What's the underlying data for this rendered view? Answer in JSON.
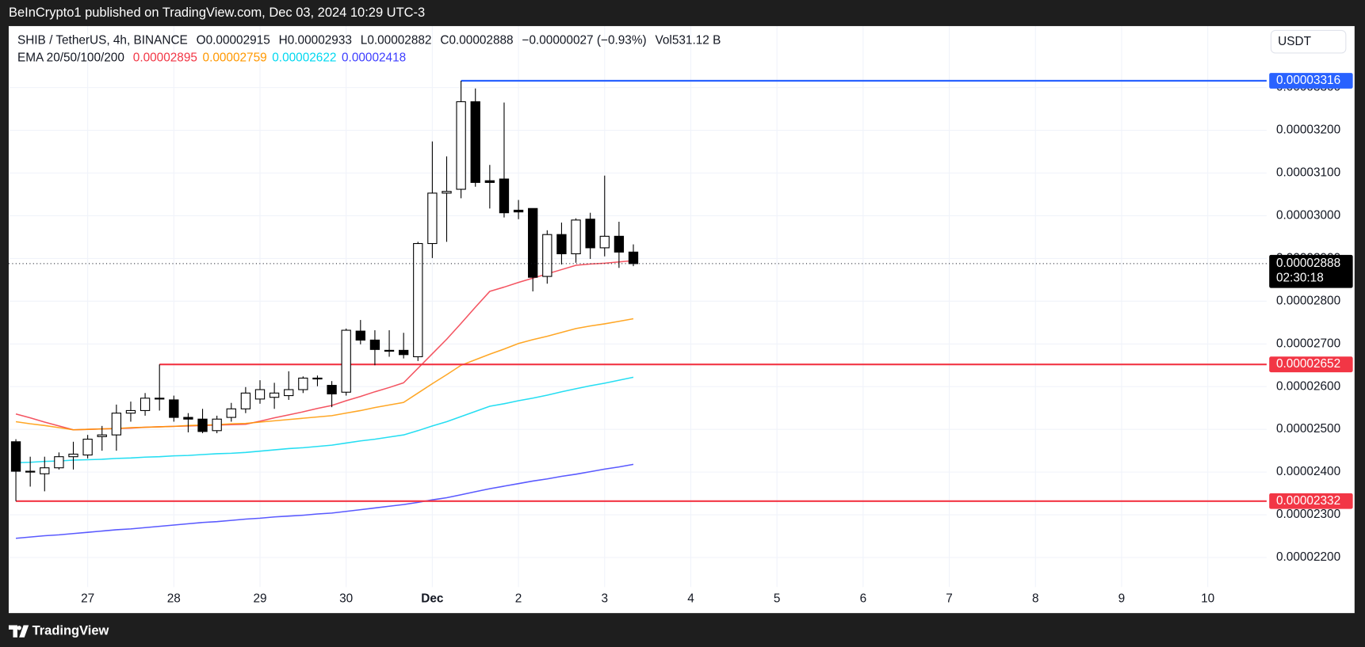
{
  "header": {
    "credit": "BeInCrypto1 published on TradingView.com, Dec 03, 2024 10:29 UTC-3"
  },
  "footer": {
    "brand": "TradingView"
  },
  "chart_data": {
    "type": "candlestick",
    "symbol": "SHIB / TetherUS, 4h, BINANCE",
    "ohlc_labels": [
      "O",
      "H",
      "L",
      "C"
    ],
    "change": "−0.00000027 (−0.93%)",
    "volume": {
      "label": "Vol",
      "value": "531.12 B"
    },
    "indicator": "EMA 20/50/100/200",
    "currency": "USDT",
    "countdown": "02:30:18",
    "up_color": "#ffffff",
    "down_color": "#000000",
    "open": [
      2.471e-05,
      2.402e-05,
      2.396e-05,
      2.41e-05,
      2.436e-05,
      2.44e-05,
      2.483e-05,
      2.487e-05,
      2.538e-05,
      2.544e-05,
      2.573e-05,
      2.569e-05,
      2.528e-05,
      2.524e-05,
      2.497e-05,
      2.528e-05,
      2.548e-05,
      2.571e-05,
      2.575e-05,
      2.579e-05,
      2.593e-05,
      2.618e-05,
      2.603e-05,
      2.587e-05,
      2.73e-05,
      2.709e-05,
      2.685e-05,
      2.685e-05,
      2.67e-05,
      2.935e-05,
      3.053e-05,
      3.062e-05,
      3.267e-05,
      3.082e-05,
      3.086e-05,
      3.013e-05,
      3.017e-05,
      2.858e-05,
      2.956e-05,
      2.911e-05,
      2.992e-05,
      2.925e-05,
      2.952e-05,
      2.915e-05
    ],
    "high": [
      2.477e-05,
      2.436e-05,
      2.436e-05,
      2.446e-05,
      2.471e-05,
      2.487e-05,
      2.508e-05,
      2.558e-05,
      2.565e-05,
      2.585e-05,
      2.652e-05,
      2.579e-05,
      2.538e-05,
      2.548e-05,
      2.532e-05,
      2.562e-05,
      2.599e-05,
      2.615e-05,
      2.609e-05,
      2.636e-05,
      2.624e-05,
      2.626e-05,
      2.613e-05,
      2.736e-05,
      2.756e-05,
      2.732e-05,
      2.732e-05,
      2.726e-05,
      2.939e-05,
      3.174e-05,
      3.139e-05,
      3.316e-05,
      3.298e-05,
      3.119e-05,
      3.265e-05,
      3.037e-05,
      3.017e-05,
      2.966e-05,
      2.984e-05,
      2.994e-05,
      3.007e-05,
      3.094e-05,
      2.986e-05,
      2.933e-05
    ],
    "low": [
      2.332e-05,
      2.366e-05,
      2.355e-05,
      2.406e-05,
      2.406e-05,
      2.432e-05,
      2.45e-05,
      2.45e-05,
      2.518e-05,
      2.532e-05,
      2.544e-05,
      2.518e-05,
      2.493e-05,
      2.491e-05,
      2.491e-05,
      2.518e-05,
      2.538e-05,
      2.56e-05,
      2.548e-05,
      2.569e-05,
      2.585e-05,
      2.601e-05,
      2.552e-05,
      2.579e-05,
      2.699e-05,
      2.65e-05,
      2.67e-05,
      2.666e-05,
      2.66e-05,
      2.901e-05,
      2.939e-05,
      3.041e-05,
      3.068e-05,
      3.017e-05,
      2.996e-05,
      2.992e-05,
      2.823e-05,
      2.841e-05,
      2.886e-05,
      2.89e-05,
      2.899e-05,
      2.905e-05,
      2.878e-05,
      2.882e-05
    ],
    "close": [
      2.402e-05,
      2.4e-05,
      2.41e-05,
      2.436e-05,
      2.442e-05,
      2.477e-05,
      2.487e-05,
      2.538e-05,
      2.544e-05,
      2.573e-05,
      2.571e-05,
      2.528e-05,
      2.524e-05,
      2.495e-05,
      2.524e-05,
      2.548e-05,
      2.585e-05,
      2.593e-05,
      2.585e-05,
      2.593e-05,
      2.62e-05,
      2.62e-05,
      2.583e-05,
      2.732e-05,
      2.709e-05,
      2.687e-05,
      2.683e-05,
      2.675e-05,
      2.935e-05,
      3.053e-05,
      3.057e-05,
      3.267e-05,
      3.078e-05,
      3.078e-05,
      3.007e-05,
      3.009e-05,
      2.856e-05,
      2.956e-05,
      2.911e-05,
      2.99e-05,
      2.925e-05,
      2.952e-05,
      2.915e-05,
      2.888e-05
    ],
    "series": [
      {
        "color": "#f23645",
        "values": [
          2.536e-05,
          2.527e-05,
          2.517e-05,
          2.508e-05,
          2.499e-05,
          2.5e-05,
          2.501e-05,
          2.502e-05,
          2.503e-05,
          2.505e-05,
          2.506e-05,
          2.507e-05,
          2.508e-05,
          2.509e-05,
          2.51e-05,
          2.511e-05,
          2.512e-05,
          2.519e-05,
          2.527e-05,
          2.534e-05,
          2.541e-05,
          2.549e-05,
          2.556e-05,
          2.567e-05,
          2.577e-05,
          2.588e-05,
          2.598e-05,
          2.609e-05,
          2.643e-05,
          2.677e-05,
          2.711e-05,
          2.748e-05,
          2.786e-05,
          2.823e-05,
          2.833e-05,
          2.844e-05,
          2.854e-05,
          2.864e-05,
          2.874e-05,
          2.884e-05,
          2.887e-05,
          2.889e-05,
          2.892e-05,
          2.895e-05
        ]
      },
      {
        "color": "#ff9800",
        "values": [
          2.518e-05,
          2.513e-05,
          2.509e-05,
          2.504e-05,
          2.499e-05,
          2.5e-05,
          2.501e-05,
          2.502e-05,
          2.504e-05,
          2.505e-05,
          2.506e-05,
          2.507e-05,
          2.509e-05,
          2.51e-05,
          2.511e-05,
          2.513e-05,
          2.514e-05,
          2.517e-05,
          2.52e-05,
          2.523e-05,
          2.526e-05,
          2.529e-05,
          2.532e-05,
          2.538e-05,
          2.544e-05,
          2.551e-05,
          2.557e-05,
          2.563e-05,
          2.585e-05,
          2.607e-05,
          2.628e-05,
          2.65e-05,
          2.663e-05,
          2.676e-05,
          2.688e-05,
          2.701e-05,
          2.71e-05,
          2.718e-05,
          2.727e-05,
          2.736e-05,
          2.742e-05,
          2.747e-05,
          2.753e-05,
          2.759e-05
        ]
      },
      {
        "color": "#00d8f0",
        "values": [
          2.422e-05,
          2.423e-05,
          2.425e-05,
          2.426e-05,
          2.428e-05,
          2.429e-05,
          2.43e-05,
          2.432e-05,
          2.433e-05,
          2.435e-05,
          2.436e-05,
          2.438e-05,
          2.439e-05,
          2.441e-05,
          2.443e-05,
          2.444e-05,
          2.446e-05,
          2.449e-05,
          2.452e-05,
          2.455e-05,
          2.457e-05,
          2.46e-05,
          2.463e-05,
          2.468e-05,
          2.473e-05,
          2.477e-05,
          2.482e-05,
          2.487e-05,
          2.497e-05,
          2.508e-05,
          2.518e-05,
          2.53e-05,
          2.542e-05,
          2.554e-05,
          2.56e-05,
          2.567e-05,
          2.573e-05,
          2.58e-05,
          2.588e-05,
          2.595e-05,
          2.602e-05,
          2.608e-05,
          2.615e-05,
          2.622e-05
        ]
      },
      {
        "color": "#3d3dff",
        "values": [
          2.245e-05,
          2.248e-05,
          2.251e-05,
          2.253e-05,
          2.256e-05,
          2.259e-05,
          2.262e-05,
          2.265e-05,
          2.267e-05,
          2.27e-05,
          2.273e-05,
          2.276e-05,
          2.279e-05,
          2.282e-05,
          2.284e-05,
          2.287e-05,
          2.29e-05,
          2.292e-05,
          2.295e-05,
          2.297e-05,
          2.299e-05,
          2.302e-05,
          2.304e-05,
          2.308e-05,
          2.312e-05,
          2.316e-05,
          2.32e-05,
          2.324e-05,
          2.329e-05,
          2.335e-05,
          2.34e-05,
          2.347e-05,
          2.354e-05,
          2.361e-05,
          2.367e-05,
          2.373e-05,
          2.379e-05,
          2.384e-05,
          2.39e-05,
          2.395e-05,
          2.401e-05,
          2.407e-05,
          2.412e-05,
          2.418e-05
        ]
      }
    ],
    "levels": [
      {
        "value": 3.316e-05,
        "color": "#2962ff"
      },
      {
        "value": 2.652e-05,
        "color": "#f23645"
      },
      {
        "value": 2.332e-05,
        "color": "#f23645"
      }
    ],
    "xlim": [
      -0.5,
      87.1
    ],
    "xticks": [
      {
        "value": 5,
        "label": "27"
      },
      {
        "value": 11,
        "label": "28"
      },
      {
        "value": 17,
        "label": "29"
      },
      {
        "value": 23,
        "label": "30"
      },
      {
        "value": 29,
        "label": "Dec"
      },
      {
        "value": 35,
        "label": "2"
      },
      {
        "value": 41,
        "label": "3"
      },
      {
        "value": 47,
        "label": "4"
      },
      {
        "value": 53,
        "label": "5"
      },
      {
        "value": 59,
        "label": "6"
      },
      {
        "value": 65,
        "label": "7"
      },
      {
        "value": 71,
        "label": "8"
      },
      {
        "value": 77,
        "label": "9"
      },
      {
        "value": 83,
        "label": "10"
      }
    ],
    "ylim": [
      2.131e-05,
      3.444e-05
    ],
    "yticks": [
      {
        "value": 2.2e-05,
        "label": "0.00002200"
      },
      {
        "value": 2.3e-05,
        "label": "0.00002300"
      },
      {
        "value": 2.4e-05,
        "label": "0.00002400"
      },
      {
        "value": 2.5e-05,
        "label": "0.00002500"
      },
      {
        "value": 2.6e-05,
        "label": "0.00002600"
      },
      {
        "value": 2.7e-05,
        "label": "0.00002700"
      },
      {
        "value": 2.8e-05,
        "label": "0.00002800"
      },
      {
        "value": 2.9e-05,
        "label": "0.00002900"
      },
      {
        "value": 3e-05,
        "label": "0.00003000"
      },
      {
        "value": 3.1e-05,
        "label": "0.00003100"
      },
      {
        "value": 3.2e-05,
        "label": "0.00003200"
      },
      {
        "value": 3.3e-05,
        "label": "0.00003300"
      }
    ],
    "grid": true
  }
}
